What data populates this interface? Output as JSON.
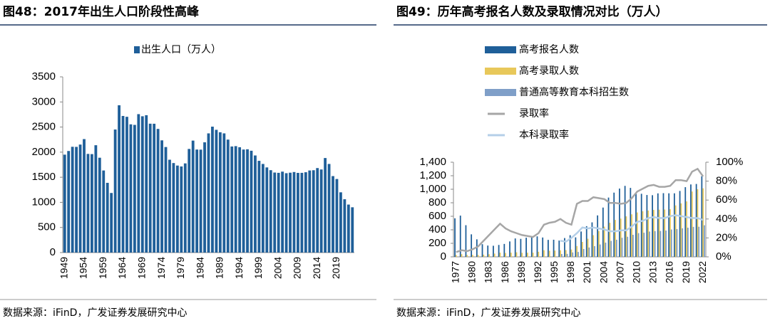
{
  "chart_data": [
    {
      "type": "bar",
      "title": "图48：2017年出生人口阶段性高峰",
      "source": "数据来源：iFinD，广发证券发展研究中心",
      "legend": "top",
      "categories": [
        "1949",
        null,
        null,
        null,
        null,
        "1954",
        null,
        null,
        null,
        null,
        "1959",
        null,
        null,
        null,
        null,
        "1964",
        null,
        null,
        null,
        null,
        "1969",
        null,
        null,
        null,
        null,
        "1974",
        null,
        null,
        null,
        null,
        "1979",
        null,
        null,
        null,
        null,
        "1984",
        null,
        null,
        null,
        null,
        "1989",
        null,
        null,
        null,
        null,
        "1994",
        null,
        null,
        null,
        null,
        "1999",
        null,
        null,
        null,
        null,
        "2004",
        null,
        null,
        null,
        null,
        "2009",
        null,
        null,
        null,
        null,
        "2014",
        null,
        null,
        null,
        null,
        "2019",
        null,
        null,
        null,
        null
      ],
      "series": [
        {
          "name": "出生人口（万人）",
          "color": "#1f5f99",
          "values": [
            1950,
            2023,
            2107,
            2105,
            2151,
            2260,
            1965,
            1961,
            2138,
            1889,
            1635,
            1389,
            1187,
            2451,
            2934,
            2721,
            2704,
            2554,
            2543,
            2757,
            2715,
            2736,
            2567,
            2566,
            2463,
            2235,
            2102,
            1849,
            1783,
            1733,
            1715,
            1776,
            2064,
            2230,
            2052,
            2050,
            2196,
            2374,
            2508,
            2445,
            2396,
            2374,
            2250,
            2113,
            2120,
            2098,
            2052,
            2057,
            2028,
            1934,
            1827,
            1765,
            1696,
            1641,
            1594,
            1588,
            1612,
            1581,
            1591,
            1604,
            1587,
            1588,
            1600,
            1635,
            1640,
            1683,
            1655,
            1883,
            1765,
            1523,
            1465,
            1200,
            1062,
            956,
            902
          ]
        }
      ],
      "ylim": [
        0,
        3500
      ],
      "yticks": [
        0,
        500,
        1000,
        1500,
        2000,
        2500,
        3000,
        3500
      ],
      "grid": false
    },
    {
      "type": "combo",
      "title": "图49：历年高考报名人数及录取情况对比（万人）",
      "source": "数据来源：iFinD，广发证券发展研究中心",
      "legend": "upper left",
      "categories": [
        "1977",
        null,
        null,
        "1980",
        null,
        null,
        "1983",
        null,
        null,
        "1986",
        null,
        null,
        "1989",
        null,
        null,
        "1992",
        null,
        null,
        "1995",
        null,
        null,
        "1998",
        null,
        null,
        "2001",
        null,
        null,
        "2004",
        null,
        null,
        "2007",
        null,
        null,
        "2010",
        null,
        null,
        "2013",
        null,
        null,
        "2016",
        null,
        null,
        "2019",
        null,
        null,
        "2022"
      ],
      "series": [
        {
          "name": "高考报名人数",
          "type": "bar",
          "color": "#1f5f99",
          "values": [
            570,
            610,
            468,
            333,
            259,
            187,
            167,
            164,
            176,
            191,
            228,
            272,
            266,
            283,
            296,
            303,
            286,
            251,
            253,
            241,
            278,
            320,
            288,
            375,
            454,
            510,
            613,
            729,
            877,
            950,
            1010,
            1050,
            1020,
            946,
            933,
            915,
            912,
            939,
            942,
            940,
            940,
            975,
            1031,
            1071,
            1078,
            1193
          ]
        },
        {
          "name": "高考录取人数",
          "type": "bar",
          "color": "#e8c85a",
          "values": [
            27,
            40,
            28,
            28,
            28,
            32,
            39,
            48,
            62,
            57,
            62,
            67,
            60,
            61,
            62,
            75,
            98,
            90,
            93,
            97,
            100,
            108,
            160,
            221,
            268,
            320,
            382,
            447,
            504,
            546,
            566,
            599,
            629,
            657,
            675,
            685,
            694,
            698,
            700,
            705,
            761,
            791,
            820,
            967,
            1001,
            1014
          ]
        },
        {
          "name": "普通高等教育本科招生数",
          "type": "bar",
          "color": "#7f9fc8",
          "values": [
            null,
            null,
            null,
            null,
            null,
            null,
            null,
            null,
            null,
            null,
            null,
            null,
            null,
            null,
            null,
            null,
            null,
            null,
            null,
            42,
            44,
            65,
            72,
            116,
            138,
            158,
            183,
            210,
            236,
            253,
            282,
            297,
            326,
            351,
            357,
            374,
            381,
            383,
            389,
            405,
            411,
            422,
            431,
            443,
            445,
            467
          ]
        },
        {
          "name": "录取率",
          "type": "line",
          "axis": "y2",
          "color": "#a6a6a6",
          "values": [
            5,
            7,
            6,
            8,
            11,
            17,
            23,
            29,
            35,
            30,
            27,
            25,
            23,
            22,
            21,
            25,
            34,
            36,
            37,
            40,
            36,
            34,
            56,
            59,
            59,
            63,
            62,
            61,
            57,
            57,
            56,
            57,
            62,
            69,
            72,
            75,
            76,
            74,
            74,
            75,
            81,
            81,
            80,
            90,
            93,
            85
          ]
        },
        {
          "name": "本科录取率",
          "type": "line",
          "axis": "y2",
          "color": "#b4cfe8",
          "values": [
            null,
            null,
            null,
            null,
            null,
            null,
            null,
            null,
            null,
            null,
            null,
            null,
            null,
            null,
            null,
            null,
            null,
            null,
            null,
            17,
            16,
            20,
            25,
            31,
            30,
            31,
            30,
            29,
            27,
            27,
            28,
            28,
            32,
            37,
            38,
            41,
            42,
            41,
            41,
            43,
            44,
            43,
            42,
            41,
            41,
            39
          ]
        }
      ],
      "ylim": [
        0,
        1400
      ],
      "yticks": [
        0,
        200,
        400,
        600,
        800,
        {
          "value": 1000,
          "label": "1,000"
        },
        {
          "value": 1200,
          "label": "1,200"
        },
        {
          "value": 1400,
          "label": "1,400"
        }
      ],
      "y2lim": [
        0,
        100
      ],
      "y2ticks": [
        {
          "value": 0,
          "label": "0%"
        },
        {
          "value": 20,
          "label": "20%"
        },
        {
          "value": 40,
          "label": "40%"
        },
        {
          "value": 60,
          "label": "60%"
        },
        {
          "value": 80,
          "label": "80%"
        },
        {
          "value": 100,
          "label": "100%"
        }
      ],
      "grid": false
    }
  ]
}
